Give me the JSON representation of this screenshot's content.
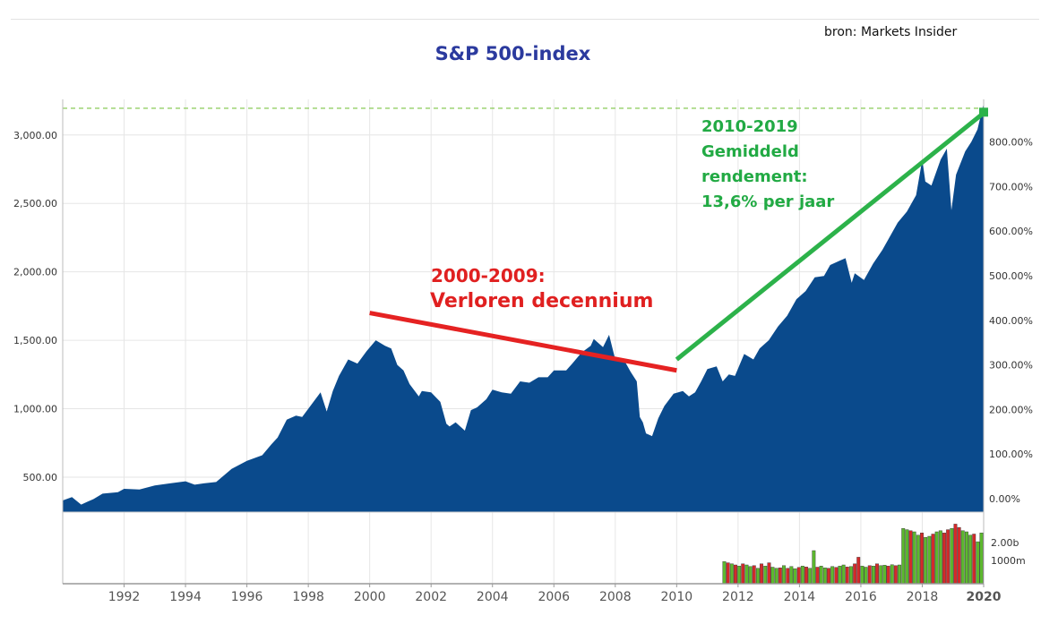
{
  "title": "S&P 500-index",
  "source": "bron: Markets Insider",
  "annotations": {
    "green": [
      "2010-2019",
      "Gemiddeld",
      "rendement:",
      "13,6% per jaar"
    ],
    "red_line1": "2000-2009:",
    "red_line2": "Verloren decennium"
  },
  "colors": {
    "area": "#0a4a8c",
    "grid": "#e6e6e6",
    "vol_up": "#5cb82e",
    "vol_down": "#d42a2a",
    "red_arrow": "#e52222",
    "green_arrow": "#2cb24a",
    "title": "#2b3a9e"
  },
  "chart_data": {
    "type": "area",
    "xlim": [
      1990,
      2020
    ],
    "ylim": [
      245,
      3260
    ],
    "y_left_ticks": [
      "500.00",
      "1,000.00",
      "1,500.00",
      "2,000.00",
      "2,500.00",
      "3,000.00"
    ],
    "y_left_values": [
      500,
      1000,
      1500,
      2000,
      2500,
      3000
    ],
    "y_right_ticks": [
      "0.00%",
      "100.00%",
      "200.00%",
      "300.00%",
      "400.00%",
      "500.00%",
      "600.00%",
      "700.00%",
      "800.00%"
    ],
    "x_ticks": [
      "1992",
      "1994",
      "1996",
      "1998",
      "2000",
      "2002",
      "2004",
      "2006",
      "2008",
      "2010",
      "2012",
      "2014",
      "2016",
      "2018",
      "2020"
    ],
    "x_tick_values": [
      1992,
      1994,
      1996,
      1998,
      2000,
      2002,
      2004,
      2006,
      2008,
      2010,
      2012,
      2014,
      2016,
      2018,
      2020
    ],
    "reference_level": 3195,
    "series": [
      {
        "x": [
          1990.0,
          1990.3,
          1990.6,
          1990.8,
          1991.0,
          1991.3,
          1991.8,
          1992.0,
          1992.5,
          1993.0,
          1993.5,
          1994.0,
          1994.3,
          1994.6,
          1995.0,
          1995.5,
          1996.0,
          1996.5,
          1996.8,
          1997.0,
          1997.3,
          1997.6,
          1997.8,
          1998.0,
          1998.4,
          1998.6,
          1998.8,
          1999.0,
          1999.3,
          1999.6,
          1999.9,
          2000.2,
          2000.5,
          2000.7,
          2000.9,
          2001.1,
          2001.3,
          2001.6,
          2001.7,
          2002.0,
          2002.3,
          2002.5,
          2002.6,
          2002.8,
          2003.1,
          2003.3,
          2003.5,
          2003.8,
          2004.0,
          2004.3,
          2004.6,
          2004.9,
          2005.2,
          2005.5,
          2005.8,
          2006.0,
          2006.4,
          2006.6,
          2006.9,
          2007.2,
          2007.3,
          2007.6,
          2007.8,
          2008.0,
          2008.3,
          2008.5,
          2008.7,
          2008.8,
          2008.9,
          2009.0,
          2009.2,
          2009.4,
          2009.6,
          2009.9,
          2010.2,
          2010.4,
          2010.6,
          2010.8,
          2011.0,
          2011.3,
          2011.5,
          2011.7,
          2011.9,
          2012.2,
          2012.5,
          2012.7,
          2013.0,
          2013.3,
          2013.6,
          2013.9,
          2014.2,
          2014.5,
          2014.8,
          2015.0,
          2015.3,
          2015.5,
          2015.7,
          2015.8,
          2016.1,
          2016.4,
          2016.7,
          2016.9,
          2017.2,
          2017.5,
          2017.8,
          2018.0,
          2018.1,
          2018.3,
          2018.6,
          2018.8,
          2018.95,
          2019.1,
          2019.4,
          2019.6,
          2019.8,
          2020.0
        ],
        "y": [
          330,
          355,
          300,
          320,
          340,
          380,
          390,
          415,
          410,
          440,
          455,
          470,
          445,
          455,
          465,
          560,
          620,
          660,
          740,
          790,
          920,
          950,
          940,
          1000,
          1120,
          980,
          1130,
          1240,
          1360,
          1330,
          1420,
          1500,
          1460,
          1440,
          1320,
          1280,
          1180,
          1090,
          1130,
          1120,
          1050,
          890,
          870,
          900,
          840,
          990,
          1010,
          1070,
          1140,
          1120,
          1110,
          1200,
          1190,
          1230,
          1230,
          1280,
          1280,
          1330,
          1410,
          1460,
          1510,
          1450,
          1540,
          1360,
          1350,
          1270,
          1200,
          940,
          900,
          820,
          800,
          930,
          1020,
          1110,
          1130,
          1090,
          1120,
          1200,
          1290,
          1310,
          1200,
          1250,
          1240,
          1400,
          1360,
          1440,
          1500,
          1600,
          1680,
          1800,
          1860,
          1960,
          1970,
          2050,
          2080,
          2100,
          1920,
          1990,
          1940,
          2060,
          2160,
          2240,
          2360,
          2440,
          2560,
          2820,
          2660,
          2630,
          2820,
          2900,
          2450,
          2710,
          2880,
          2950,
          3040,
          3230
        ]
      }
    ],
    "volume": {
      "label_ticks": [
        "1000m",
        "2.00b"
      ],
      "x_start": 2011.5,
      "x_end": 2020.0,
      "values": [
        1.0,
        0.95,
        0.9,
        0.85,
        0.8,
        0.9,
        0.85,
        0.78,
        0.82,
        0.7,
        0.9,
        0.8,
        0.95,
        0.75,
        0.7,
        0.72,
        0.82,
        0.7,
        0.78,
        0.68,
        0.74,
        0.8,
        0.76,
        0.7,
        1.5,
        0.75,
        0.8,
        0.72,
        0.7,
        0.78,
        0.74,
        0.8,
        0.85,
        0.76,
        0.78,
        0.9,
        1.2,
        0.8,
        0.75,
        0.82,
        0.8,
        0.9,
        0.82,
        0.84,
        0.8,
        0.86,
        0.82,
        0.85,
        2.5,
        2.45,
        2.4,
        2.35,
        2.2,
        2.3,
        2.1,
        2.15,
        2.25,
        2.35,
        2.4,
        2.3,
        2.45,
        2.5,
        2.7,
        2.55,
        2.4,
        2.35,
        2.2,
        2.25,
        1.9,
        2.3
      ],
      "up": [
        1,
        0,
        1,
        0,
        1,
        0,
        1,
        1,
        0,
        1,
        0,
        1,
        0,
        1,
        1,
        0,
        1,
        0,
        1,
        1,
        0,
        1,
        0,
        1,
        1,
        0,
        1,
        1,
        0,
        1,
        0,
        1,
        1,
        0,
        1,
        0,
        0,
        1,
        1,
        0,
        1,
        0,
        1,
        1,
        0,
        1,
        0,
        1,
        1,
        1,
        0,
        1,
        1,
        0,
        1,
        1,
        0,
        1,
        1,
        0,
        0,
        1,
        0,
        0,
        1,
        1,
        1,
        0,
        1,
        1
      ],
      "ylim": [
        0,
        3.0
      ]
    },
    "arrows": [
      {
        "name": "red-trend-arrow",
        "from": [
          2000.0,
          1700
        ],
        "to": [
          2010.0,
          1280
        ],
        "color": "#e52222"
      },
      {
        "name": "green-trend-arrow",
        "from": [
          2010.0,
          1360
        ],
        "to": [
          2020.0,
          3160
        ],
        "color": "#2cb24a"
      }
    ]
  }
}
